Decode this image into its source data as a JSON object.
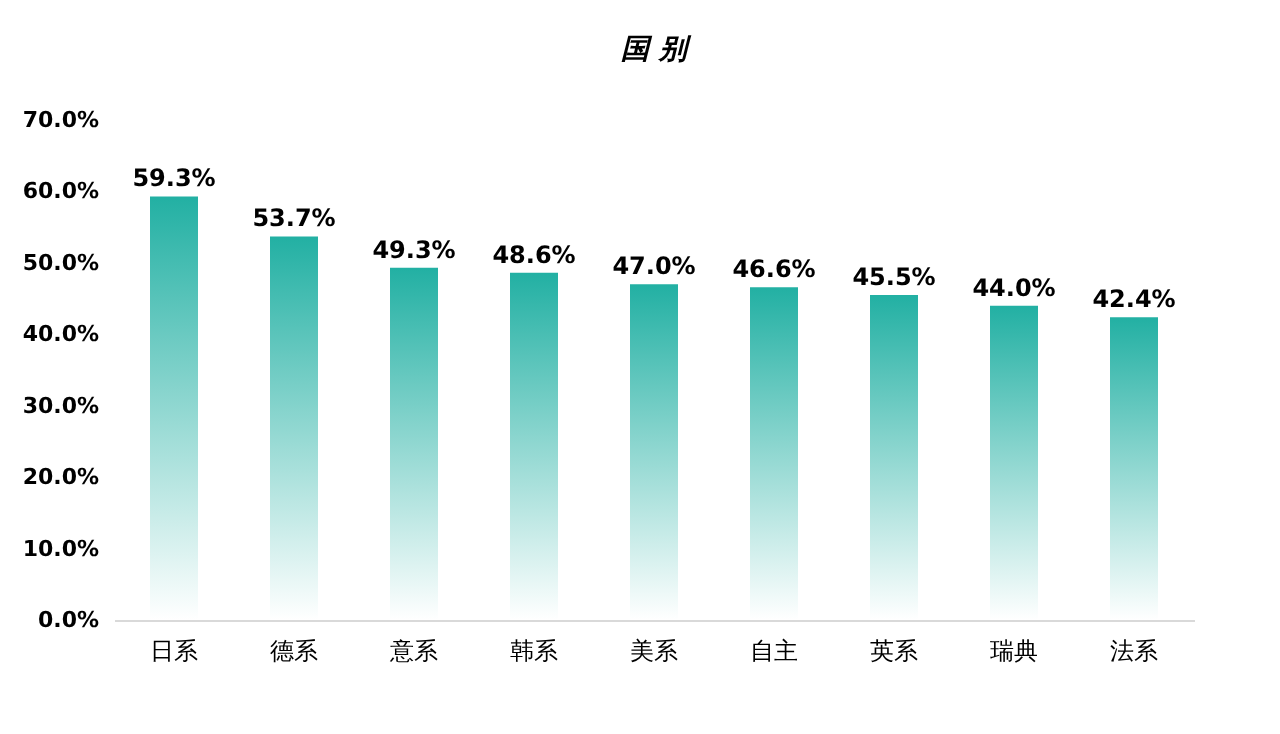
{
  "chart_data": {
    "type": "bar",
    "title": "国 别",
    "categories": [
      "日系",
      "德系",
      "意系",
      "韩系",
      "美系",
      "自主",
      "英系",
      "瑞典",
      "法系"
    ],
    "values": [
      59.3,
      53.7,
      49.3,
      48.6,
      47.0,
      46.6,
      45.5,
      44.0,
      42.4
    ],
    "value_labels": [
      "59.3%",
      "53.7%",
      "49.3%",
      "48.6%",
      "47.0%",
      "46.6%",
      "45.5%",
      "44.0%",
      "42.4%"
    ],
    "color": "#22b0a3",
    "ylim": [
      0,
      70
    ],
    "yticks": [
      {
        "value": 0,
        "label": "0.0%"
      },
      {
        "value": 10,
        "label": "10.0%"
      },
      {
        "value": 20,
        "label": "20.0%"
      },
      {
        "value": 30,
        "label": "30.0%"
      },
      {
        "value": 40,
        "label": "40.0%"
      },
      {
        "value": 50,
        "label": "50.0%"
      },
      {
        "value": 60,
        "label": "60.0%"
      },
      {
        "value": 70,
        "label": "70.0%"
      }
    ],
    "grid": false
  }
}
